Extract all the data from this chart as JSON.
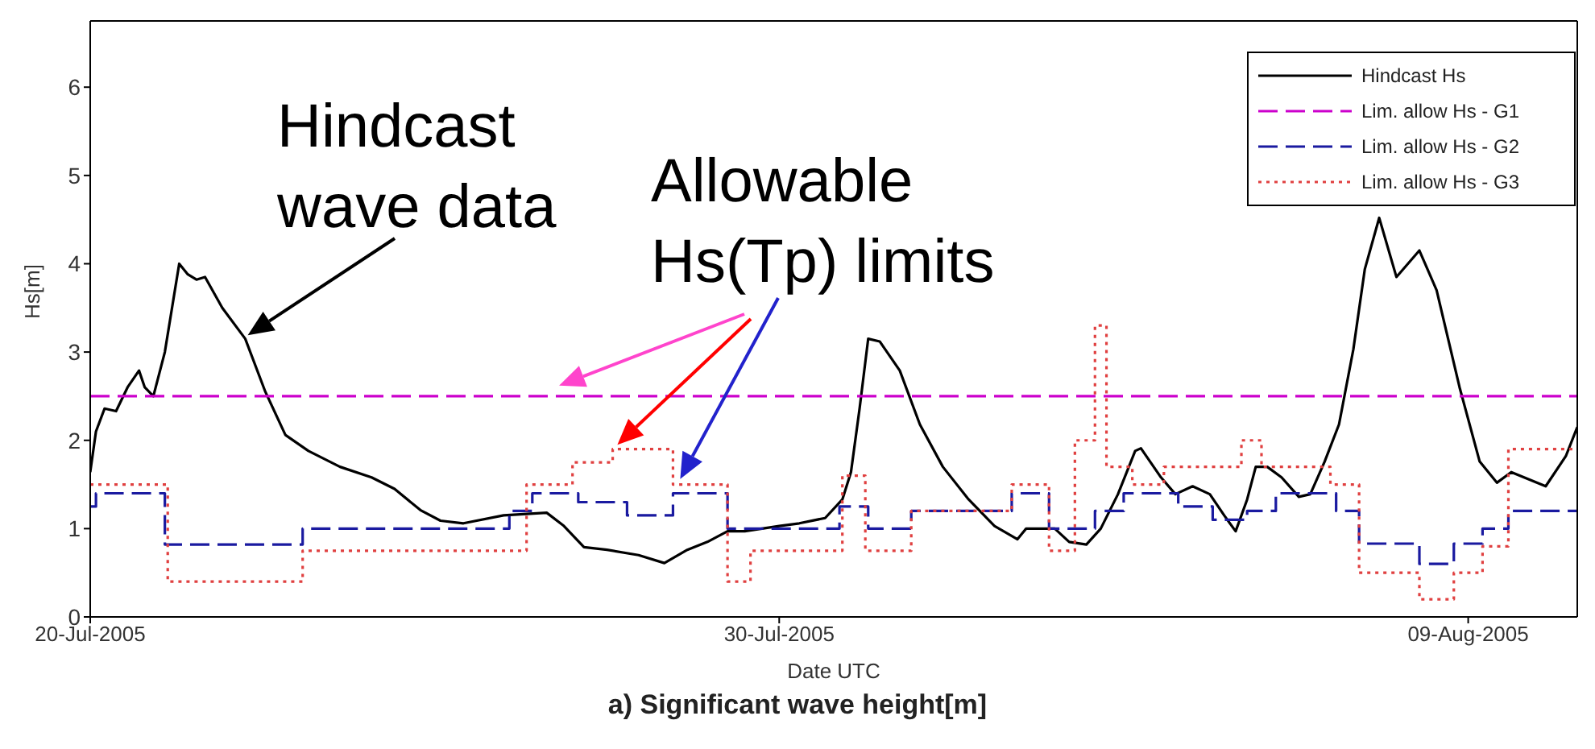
{
  "chart_data": {
    "type": "line",
    "title": "a) Significant wave height[m]",
    "xlabel": "Date UTC",
    "ylabel": "Hs[m]",
    "annotations": [
      {
        "text": "Hindcast wave data",
        "x": "2005-07-22T05:00",
        "y": 3.15
      },
      {
        "text": "Allowable Hs(Tp) limits",
        "x": "2005-07-27T14:00",
        "y": 1.9
      }
    ],
    "xlim": [
      "2005-07-20T00:00",
      "2005-08-10T14:00"
    ],
    "xticks": [
      {
        "value": "2005-07-20",
        "label": "20-Jul-2005"
      },
      {
        "value": "2005-07-30",
        "label": "30-Jul-2005"
      },
      {
        "value": "2005-08-09",
        "label": "09-Aug-2005"
      }
    ],
    "ylim": [
      0,
      6.75
    ],
    "yticks": [
      0,
      1,
      2,
      3,
      4,
      5,
      6
    ],
    "legend": "top right",
    "series": [
      {
        "name": "Hindcast Hs",
        "type": "line",
        "color": "#000000",
        "line_style": "solid",
        "x": [
          "2005-07-20T00:00",
          "2005-07-20T02:00",
          "2005-07-20T05:00",
          "2005-07-20T09:00",
          "2005-07-20T13:00",
          "2005-07-20T17:00",
          "2005-07-20T19:00",
          "2005-07-20T22:00",
          "2005-07-21T02:00",
          "2005-07-21T05:00",
          "2005-07-21T07:00",
          "2005-07-21T10:00",
          "2005-07-21T13:00",
          "2005-07-21T16:00",
          "2005-07-21T22:00",
          "2005-07-22T06:00",
          "2005-07-22T13:00",
          "2005-07-22T20:00",
          "2005-07-23T04:00",
          "2005-07-23T15:00",
          "2005-07-24T02:00",
          "2005-07-24T10:00",
          "2005-07-24T19:00",
          "2005-07-25T02:00",
          "2005-07-25T10:00",
          "2005-07-26T00:00",
          "2005-07-26T15:00",
          "2005-07-26T21:00",
          "2005-07-27T04:00",
          "2005-07-27T12:00",
          "2005-07-27T23:00",
          "2005-07-28T08:00",
          "2005-07-28T16:00",
          "2005-07-28T23:00",
          "2005-07-29T06:00",
          "2005-07-29T12:00",
          "2005-07-30T00:00",
          "2005-07-30T07:00",
          "2005-07-30T16:00",
          "2005-07-30T22:00",
          "2005-07-31T01:00",
          "2005-07-31T04:00",
          "2005-07-31T07:00",
          "2005-07-31T11:00",
          "2005-07-31T18:00",
          "2005-08-01T01:00",
          "2005-08-01T09:00",
          "2005-08-01T18:00",
          "2005-08-02T03:00",
          "2005-08-02T11:00",
          "2005-08-02T14:00",
          "2005-08-03T00:00",
          "2005-08-03T05:00",
          "2005-08-03T11:00",
          "2005-08-03T16:00",
          "2005-08-03T22:00",
          "2005-08-04T04:00",
          "2005-08-04T06:00",
          "2005-08-04T13:00",
          "2005-08-04T18:00",
          "2005-08-05T00:00",
          "2005-08-05T06:00",
          "2005-08-05T11:00",
          "2005-08-05T15:00",
          "2005-08-05T19:00",
          "2005-08-05T22:00",
          "2005-08-06T02:00",
          "2005-08-06T07:00",
          "2005-08-06T13:00",
          "2005-08-06T17:00",
          "2005-08-06T22:00",
          "2005-08-07T03:00",
          "2005-08-07T08:00",
          "2005-08-07T12:00",
          "2005-08-07T17:00",
          "2005-08-07T23:00",
          "2005-08-08T07:00",
          "2005-08-08T13:00",
          "2005-08-08T21:00",
          "2005-08-09T04:00",
          "2005-08-09T10:00",
          "2005-08-09T15:00",
          "2005-08-10T03:00",
          "2005-08-10T10:00",
          "2005-08-10T14:00"
        ],
        "values": [
          1.64,
          2.1,
          2.36,
          2.33,
          2.6,
          2.79,
          2.6,
          2.5,
          3.0,
          3.6,
          4.0,
          3.88,
          3.82,
          3.85,
          3.5,
          3.15,
          2.55,
          2.06,
          1.88,
          1.7,
          1.58,
          1.45,
          1.21,
          1.09,
          1.06,
          1.15,
          1.18,
          1.03,
          0.79,
          0.76,
          0.7,
          0.61,
          0.76,
          0.85,
          0.97,
          0.97,
          1.03,
          1.06,
          1.12,
          1.33,
          1.64,
          2.36,
          3.15,
          3.12,
          2.79,
          2.18,
          1.7,
          1.33,
          1.03,
          0.88,
          1.0,
          1.0,
          0.85,
          0.82,
          1.0,
          1.39,
          1.88,
          1.91,
          1.58,
          1.39,
          1.48,
          1.39,
          1.15,
          0.97,
          1.33,
          1.7,
          1.7,
          1.58,
          1.36,
          1.39,
          1.76,
          2.18,
          3.03,
          3.94,
          4.52,
          3.85,
          4.15,
          3.7,
          2.6,
          1.76,
          1.52,
          1.64,
          1.48,
          1.82,
          2.15
        ]
      },
      {
        "name": "Lim. allow Hs - G1",
        "type": "line",
        "color": "#cc00cc",
        "line_style": "dashed",
        "x": [
          "2005-07-20T00:00",
          "2005-08-10T14:00"
        ],
        "values": [
          2.5,
          2.5
        ]
      },
      {
        "name": "Lim. allow Hs - G2",
        "type": "step",
        "color": "#1a1aa0",
        "line_style": "dashed",
        "x": [
          "2005-07-20T00:00",
          "2005-07-20T02:00",
          "2005-07-21T02:00",
          "2005-07-23T02:00",
          "2005-07-26T02:00",
          "2005-07-26T10:00",
          "2005-07-27T02:00",
          "2005-07-27T19:00",
          "2005-07-28T11:00",
          "2005-07-29T06:00",
          "2005-07-30T21:00",
          "2005-07-31T07:00",
          "2005-07-31T22:00",
          "2005-08-02T09:00",
          "2005-08-02T22:00",
          "2005-08-03T14:00",
          "2005-08-04T00:00",
          "2005-08-04T19:00",
          "2005-08-05T07:00",
          "2005-08-05T19:00",
          "2005-08-06T05:00",
          "2005-08-07T02:00",
          "2005-08-07T10:00",
          "2005-08-08T07:00",
          "2005-08-08T19:00",
          "2005-08-09T05:00",
          "2005-08-09T14:00",
          "2005-08-10T14:00"
        ],
        "values": [
          1.25,
          1.4,
          0.82,
          1.0,
          1.2,
          1.4,
          1.3,
          1.15,
          1.4,
          1.0,
          1.25,
          1.0,
          1.2,
          1.4,
          1.0,
          1.2,
          1.4,
          1.25,
          1.1,
          1.2,
          1.4,
          1.2,
          0.83,
          0.6,
          0.83,
          1.0,
          1.2,
          1.2
        ]
      },
      {
        "name": "Lim. allow Hs - G3",
        "type": "step",
        "color": "#e04040",
        "line_style": "dotted",
        "x": [
          "2005-07-20T00:00",
          "2005-07-21T03:00",
          "2005-07-23T02:00",
          "2005-07-26T08:00",
          "2005-07-27T00:00",
          "2005-07-27T14:00",
          "2005-07-28T11:00",
          "2005-07-29T06:00",
          "2005-07-29T14:00",
          "2005-07-30T22:00",
          "2005-07-31T06:00",
          "2005-07-31T22:00",
          "2005-08-02T09:00",
          "2005-08-02T22:00",
          "2005-08-03T07:00",
          "2005-08-03T14:00",
          "2005-08-03T18:00",
          "2005-08-04T03:00",
          "2005-08-04T14:00",
          "2005-08-05T17:00",
          "2005-08-06T00:00",
          "2005-08-07T00:00",
          "2005-08-07T10:00",
          "2005-08-08T07:00",
          "2005-08-08T19:00",
          "2005-08-09T05:00",
          "2005-08-09T14:00",
          "2005-08-10T14:00"
        ],
        "values": [
          1.5,
          0.4,
          0.75,
          1.5,
          1.75,
          1.9,
          1.5,
          0.4,
          0.75,
          1.6,
          0.75,
          1.2,
          1.5,
          0.75,
          2.0,
          3.3,
          1.7,
          1.5,
          1.7,
          2.0,
          1.7,
          1.5,
          0.5,
          0.2,
          0.5,
          0.8,
          1.9,
          1.9
        ]
      }
    ]
  }
}
